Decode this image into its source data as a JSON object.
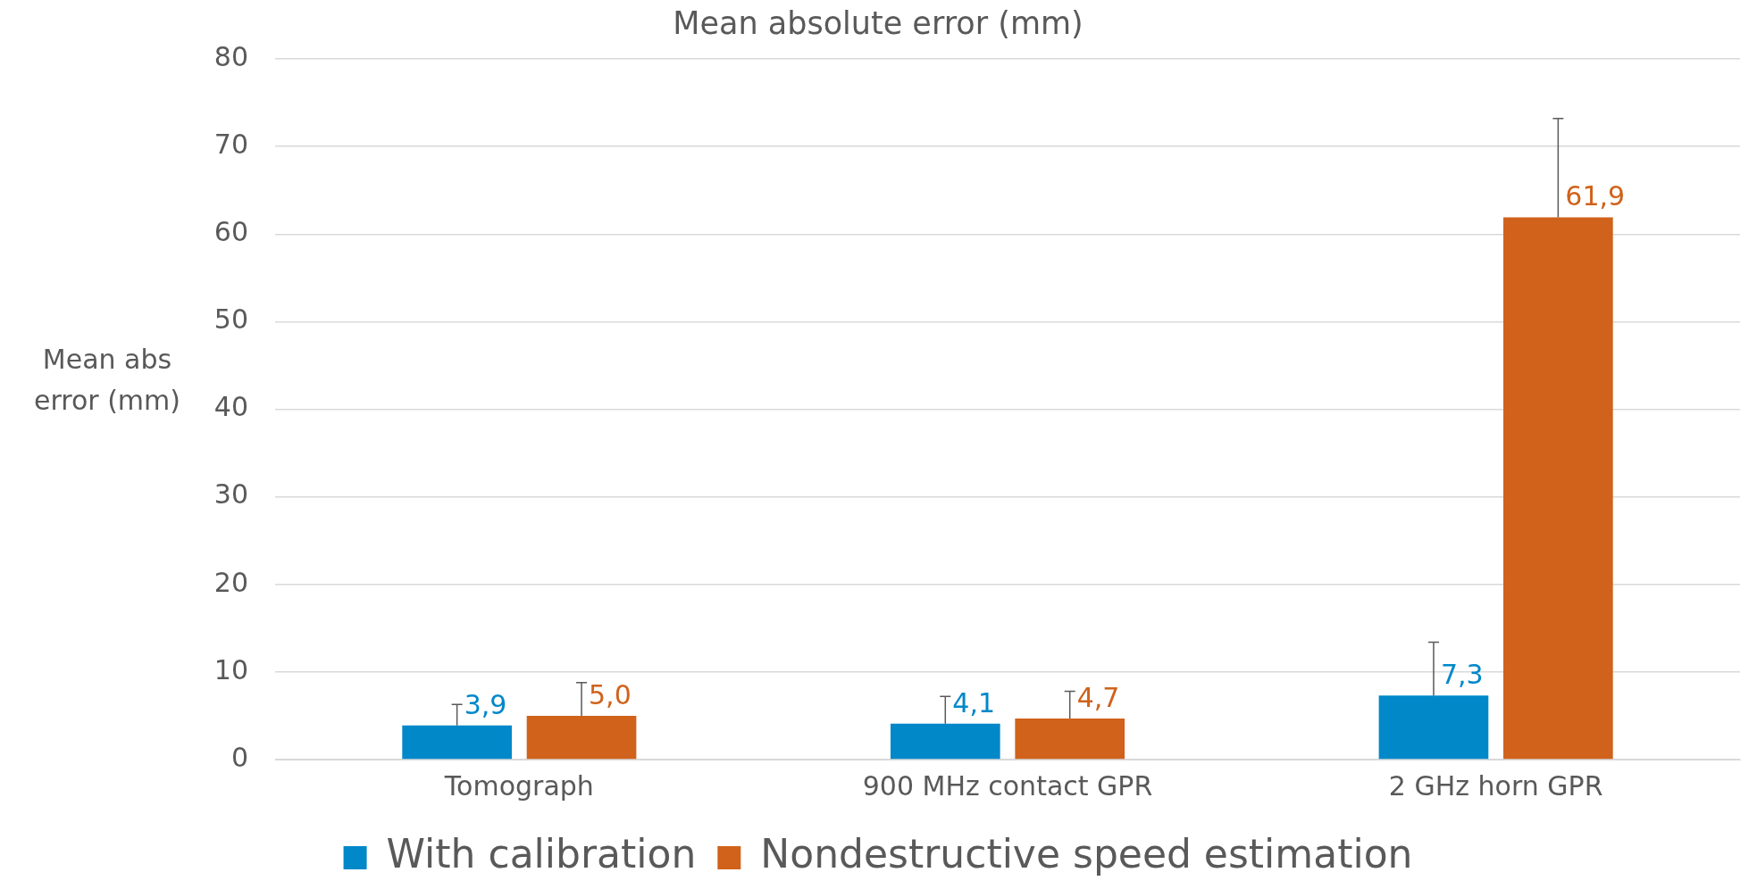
{
  "chart_data": {
    "type": "bar",
    "title": "Mean absolute error (mm)",
    "ylabel": "Mean abs error (mm)",
    "categories": [
      "Tomograph",
      "900 MHz contact GPR",
      "2 GHz horn GPR"
    ],
    "series": [
      {
        "name": "With calibration",
        "color": "#0088c9",
        "values": [
          3.9,
          4.1,
          7.3
        ],
        "value_labels": [
          "3,9",
          "4,1",
          "7,3"
        ],
        "errors": [
          [
            3.9,
            6.3
          ],
          [
            4.1,
            7.2
          ],
          [
            7.3,
            13.4
          ]
        ]
      },
      {
        "name": "Nondestructive speed estimation",
        "color": "#d0621b",
        "values": [
          5.0,
          4.7,
          61.9
        ],
        "value_labels": [
          "5,0",
          "4,7",
          "61,9"
        ],
        "errors": [
          [
            5.0,
            8.8
          ],
          [
            4.7,
            7.8
          ],
          [
            61.9,
            73.2
          ]
        ]
      }
    ],
    "ylim": [
      0,
      80
    ],
    "yticks": [
      0,
      10,
      20,
      30,
      40,
      50,
      60,
      70,
      80
    ],
    "grid": "y",
    "legend": "bottom"
  }
}
